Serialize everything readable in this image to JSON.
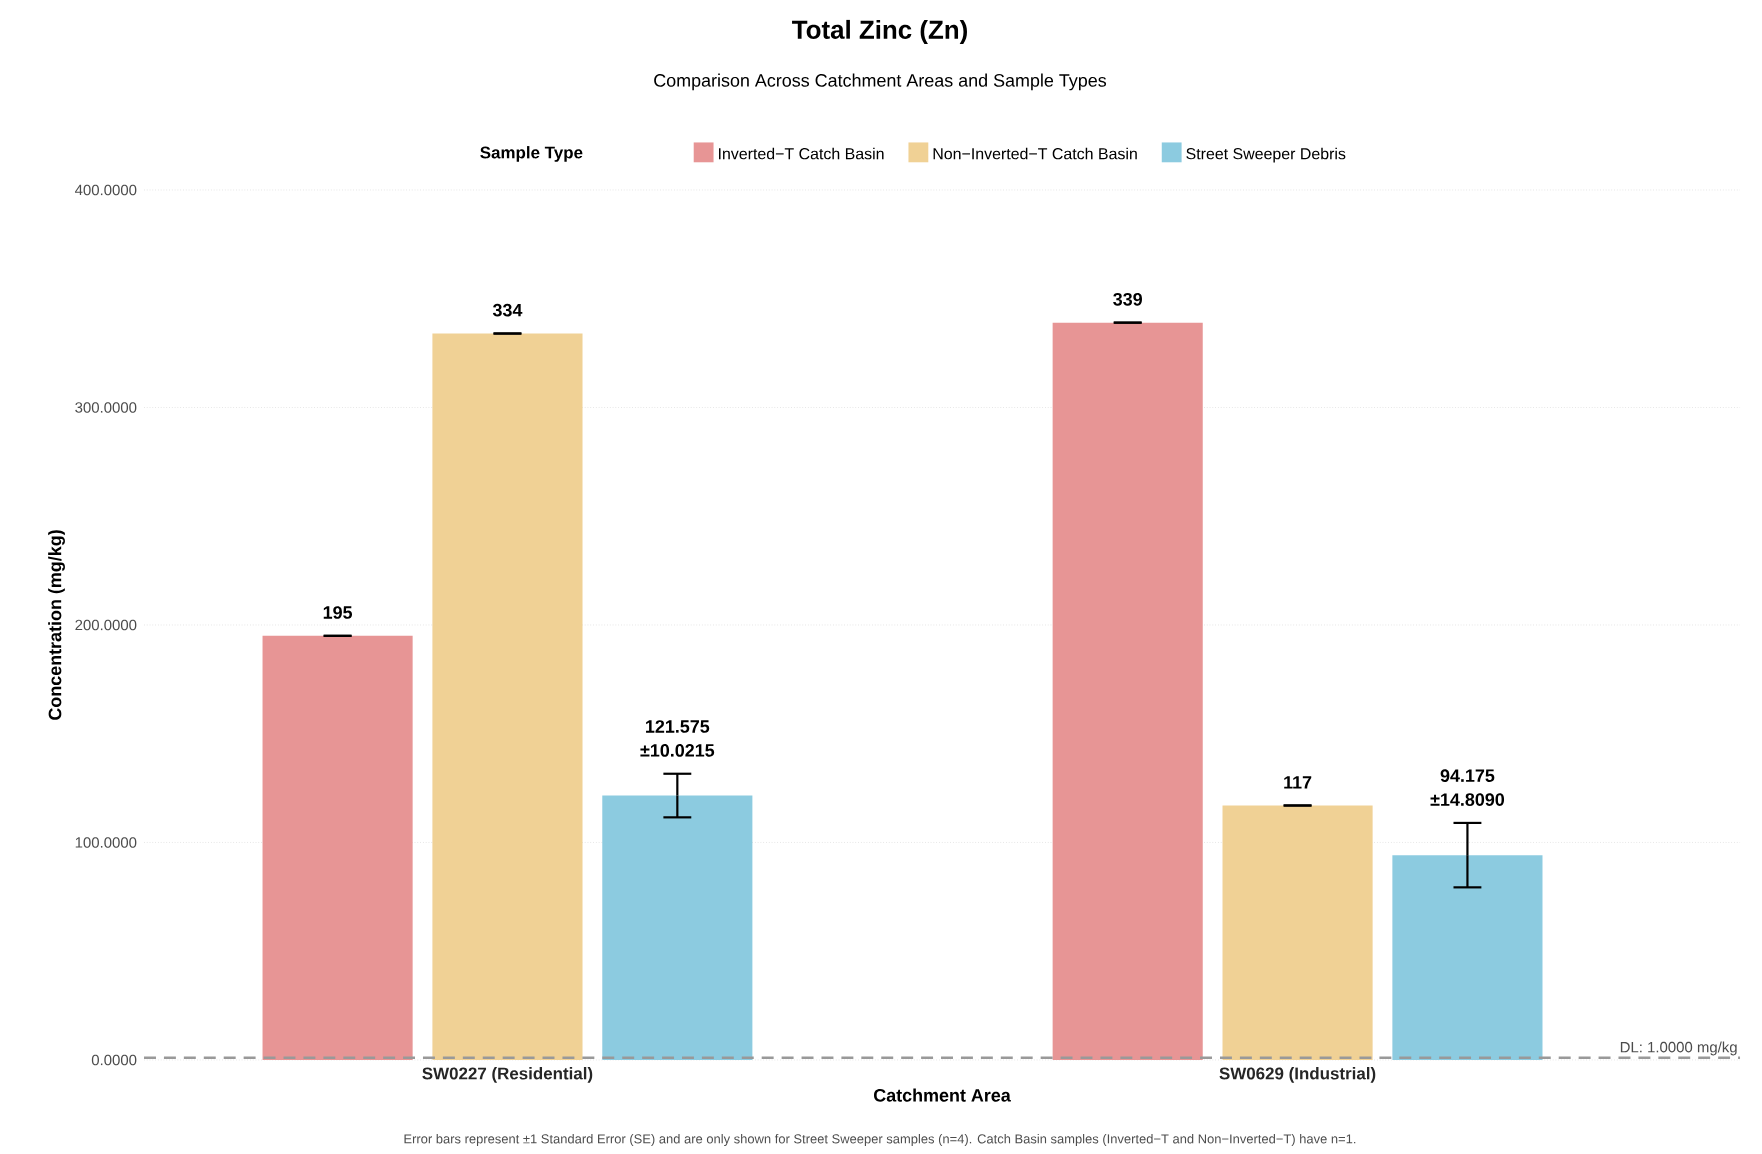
{
  "chart_data": {
    "type": "bar",
    "title": "Total Zinc (Zn)",
    "subtitle": "Comparison Across Catchment Areas and Sample Types",
    "xlabel": "Catchment Area",
    "ylabel": "Concentration (mg/kg)",
    "legend_title": "Sample Type",
    "categories": [
      "SW0227 (Residential)",
      "SW0629 (Industrial)"
    ],
    "series": [
      {
        "name": "Inverted−T Catch Basin",
        "color": "#e79595",
        "values": [
          195,
          339
        ],
        "errors": [
          0,
          0
        ],
        "value_labels": [
          "195",
          "339"
        ]
      },
      {
        "name": "Non−Inverted−T Catch Basin",
        "color": "#f0d195",
        "values": [
          334,
          117
        ],
        "errors": [
          0,
          0
        ],
        "value_labels": [
          "334",
          "117"
        ]
      },
      {
        "name": "Street Sweeper Debris",
        "color": "#8ccbe0",
        "values": [
          121.575,
          94.175
        ],
        "errors": [
          10.0215,
          14.809
        ],
        "value_labels": [
          "121.575 ±10.0215",
          "94.175 ±14.8090"
        ]
      }
    ],
    "ylim": [
      0,
      400
    ],
    "yticks": [
      {
        "value": 0,
        "label": "0.0000"
      },
      {
        "value": 100,
        "label": "100.0000"
      },
      {
        "value": 200,
        "label": "200.0000"
      },
      {
        "value": 300,
        "label": "300.0000"
      },
      {
        "value": 400,
        "label": "400.0000"
      }
    ],
    "grid": "y",
    "legend": "top",
    "ref_lines": [
      {
        "axis": "y",
        "value": 1,
        "label": "DL: 1.0000 mg/kg",
        "color": "#999999",
        "line_style": "dashed"
      }
    ],
    "annotations": [
      "Error bars represent ±1 Standard Error (SE) and are only shown for Street Sweeper samples (n=4). Catch Basin samples (Inverted−T and Non−Inverted−T) have n=1."
    ]
  }
}
